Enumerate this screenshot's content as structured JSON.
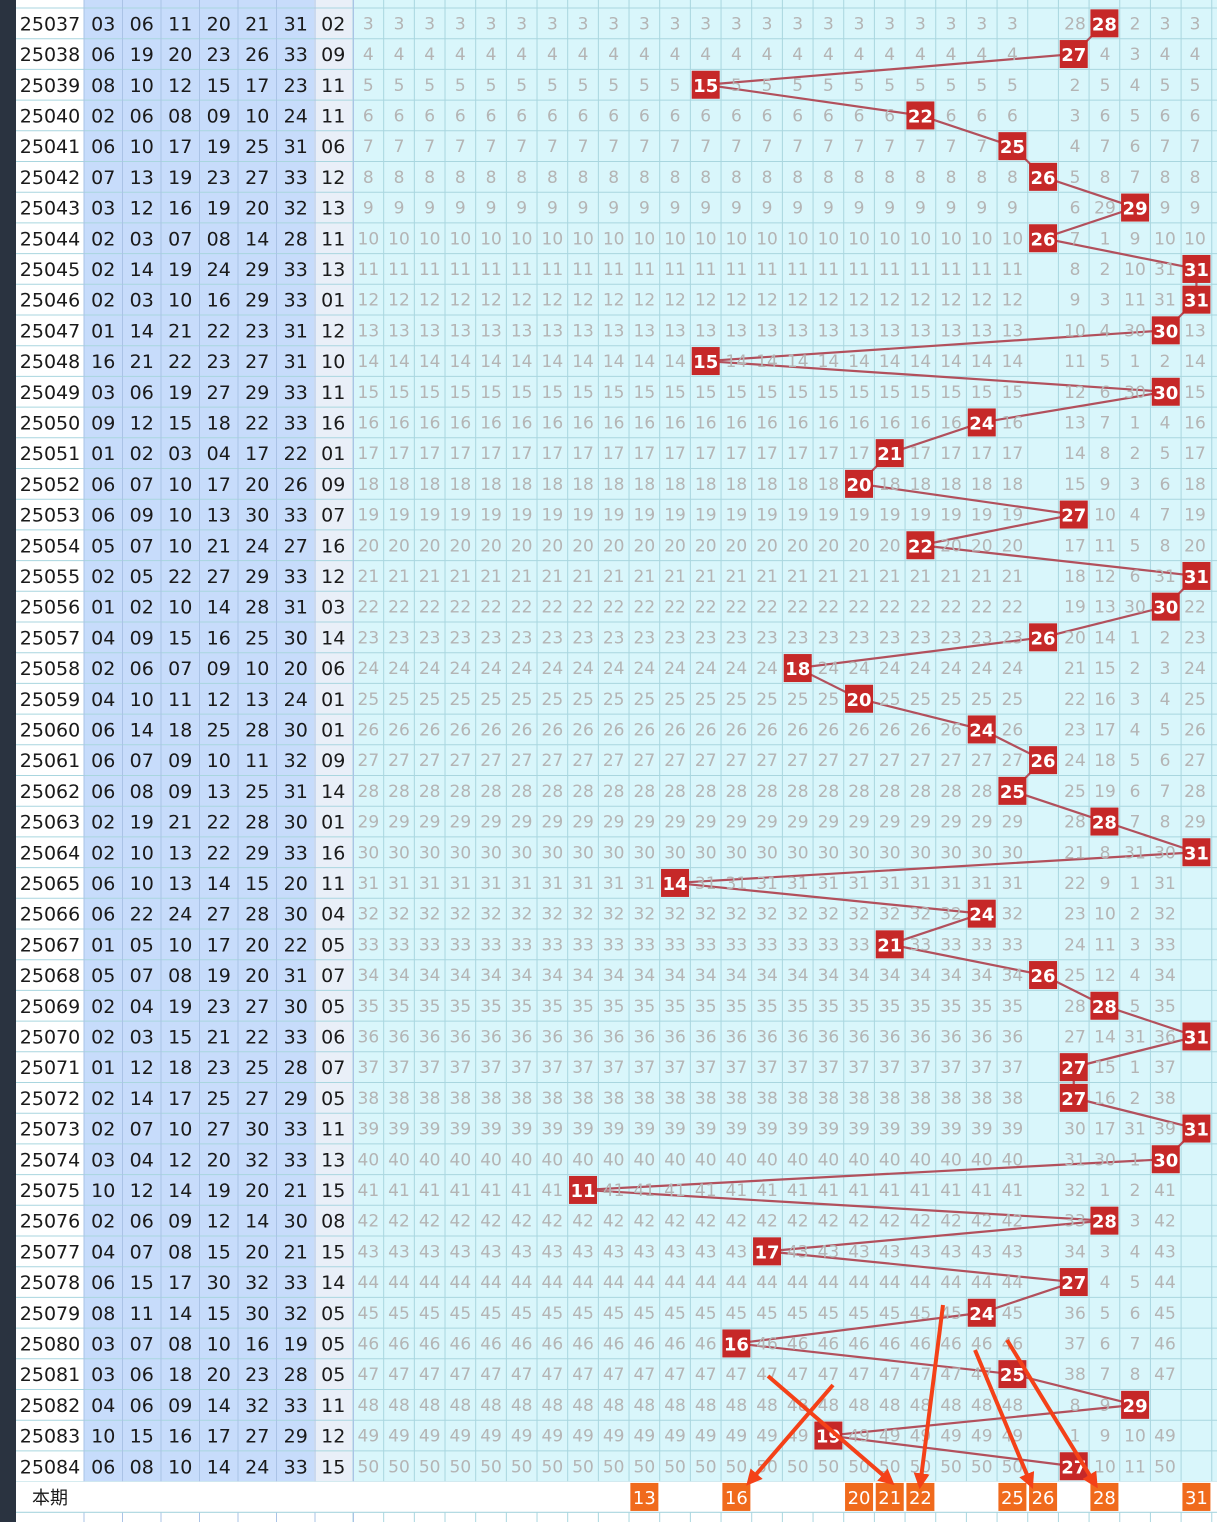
{
  "chart_data": {
    "type": "table",
    "column": "blue-ball-trend",
    "last_row_label": "本期",
    "predicted_numbers": [
      "13",
      "16",
      "20",
      "21",
      "22",
      "25",
      "26",
      "28",
      "31"
    ],
    "colors": {
      "hit_cell": "#c62828",
      "prediction_cell": "#f06a1c",
      "trend_line": "#b2505c",
      "arrow": "#f44118",
      "omission_text": "#b4b4b4",
      "grid_bg": "#d9f6fb",
      "ball_col_bg": "#c7dcfb"
    },
    "rows": [
      {
        "issue": "25037",
        "balls": [
          "03",
          "06",
          "11",
          "20",
          "21",
          "31"
        ],
        "blue": "02",
        "hit": 28,
        "tail": "1|28|3|2|3|3"
      },
      {
        "issue": "25038",
        "balls": [
          "06",
          "19",
          "20",
          "23",
          "26",
          "33"
        ],
        "blue": "09",
        "hit": 27,
        "tail": "27|1|4|3|4|4"
      },
      {
        "issue": "25039",
        "balls": [
          "08",
          "10",
          "12",
          "15",
          "17",
          "23"
        ],
        "blue": "11",
        "hit": 15,
        "tail": "2|5|4|5|5"
      },
      {
        "issue": "25040",
        "balls": [
          "02",
          "06",
          "08",
          "09",
          "10",
          "24"
        ],
        "blue": "11",
        "hit": 22,
        "tail": "2|3|6|5|6|6"
      },
      {
        "issue": "25041",
        "balls": [
          "06",
          "10",
          "17",
          "19",
          "25",
          "31"
        ],
        "blue": "06",
        "hit": 25,
        "tail": "3|4|7|6|7|7"
      },
      {
        "issue": "25042",
        "balls": [
          "07",
          "13",
          "19",
          "23",
          "27",
          "33"
        ],
        "blue": "12",
        "hit": 26,
        "tail": "4|5|8|7|8|8"
      },
      {
        "issue": "25043",
        "balls": [
          "03",
          "12",
          "16",
          "19",
          "20",
          "32"
        ],
        "blue": "13",
        "hit": 29,
        "tail": "5|6|29|8|9|9"
      },
      {
        "issue": "25044",
        "balls": [
          "02",
          "03",
          "07",
          "08",
          "14",
          "28"
        ],
        "blue": "11",
        "hit": 26,
        "tail": "6|7|1|9|10|10"
      },
      {
        "issue": "25045",
        "balls": [
          "02",
          "14",
          "19",
          "24",
          "29",
          "33"
        ],
        "blue": "13",
        "hit": 31,
        "tail": "7|8|2|10|31|11"
      },
      {
        "issue": "25046",
        "balls": [
          "02",
          "03",
          "10",
          "16",
          "29",
          "33"
        ],
        "blue": "01",
        "hit": 31,
        "tail": "8|9|3|11|31|12"
      },
      {
        "issue": "25047",
        "balls": [
          "01",
          "14",
          "21",
          "22",
          "23",
          "31"
        ],
        "blue": "12",
        "hit": 30,
        "tail": "9|10|4|30|1|13"
      },
      {
        "issue": "25048",
        "balls": [
          "16",
          "21",
          "22",
          "23",
          "27",
          "31"
        ],
        "blue": "10",
        "hit": 15,
        "tail": "10|11|5|1|2|14"
      },
      {
        "issue": "25049",
        "balls": [
          "03",
          "06",
          "19",
          "27",
          "29",
          "33"
        ],
        "blue": "11",
        "hit": 30,
        "tail": "11|12|6|30|3|15"
      },
      {
        "issue": "25050",
        "balls": [
          "09",
          "12",
          "15",
          "18",
          "22",
          "33"
        ],
        "blue": "16",
        "hit": 24,
        "tail": "12|13|7|1|4|16"
      },
      {
        "issue": "25051",
        "balls": [
          "01",
          "02",
          "03",
          "04",
          "17",
          "22"
        ],
        "blue": "01",
        "hit": 21,
        "tail": "13|14|8|2|5|17"
      },
      {
        "issue": "25052",
        "balls": [
          "06",
          "07",
          "10",
          "17",
          "20",
          "26"
        ],
        "blue": "09",
        "hit": 20,
        "tail": "14|15|9|3|6|18"
      },
      {
        "issue": "25053",
        "balls": [
          "06",
          "09",
          "10",
          "13",
          "30",
          "33"
        ],
        "blue": "07",
        "hit": 27,
        "tail": "16|10|4|7|19"
      },
      {
        "issue": "25054",
        "balls": [
          "05",
          "07",
          "10",
          "21",
          "24",
          "27"
        ],
        "blue": "16",
        "hit": 22,
        "tail": "17|11|5|8|20"
      },
      {
        "issue": "25055",
        "balls": [
          "02",
          "05",
          "22",
          "27",
          "29",
          "33"
        ],
        "blue": "12",
        "hit": 31,
        "tail": "18|12|6|31|21"
      },
      {
        "issue": "25056",
        "balls": [
          "01",
          "02",
          "10",
          "14",
          "28",
          "31"
        ],
        "blue": "03",
        "hit": 30,
        "tail": "19|13|30|1|22"
      },
      {
        "issue": "25057",
        "balls": [
          "04",
          "09",
          "15",
          "16",
          "25",
          "30"
        ],
        "blue": "14",
        "hit": 26,
        "tail": "20|14|1|2|23"
      },
      {
        "issue": "25058",
        "balls": [
          "02",
          "06",
          "07",
          "09",
          "10",
          "20"
        ],
        "blue": "06",
        "hit": 18,
        "tail": "21|15|2|3|24"
      },
      {
        "issue": "25059",
        "balls": [
          "04",
          "10",
          "11",
          "12",
          "13",
          "24"
        ],
        "blue": "01",
        "hit": 20,
        "tail": "22|16|3|4|25"
      },
      {
        "issue": "25060",
        "balls": [
          "06",
          "14",
          "18",
          "25",
          "28",
          "30"
        ],
        "blue": "01",
        "hit": 24,
        "tail": "23|17|4|5|26"
      },
      {
        "issue": "25061",
        "balls": [
          "06",
          "07",
          "09",
          "10",
          "11",
          "32"
        ],
        "blue": "09",
        "hit": 26,
        "tail": "24|18|5|6|27"
      },
      {
        "issue": "25062",
        "balls": [
          "06",
          "08",
          "09",
          "13",
          "25",
          "31"
        ],
        "blue": "14",
        "hit": 25,
        "tail": "25|19|6|7|28"
      },
      {
        "issue": "25063",
        "balls": [
          "02",
          "19",
          "21",
          "22",
          "28",
          "30"
        ],
        "blue": "01",
        "hit": 28,
        "tail": "28|20|7|8|29"
      },
      {
        "issue": "25064",
        "balls": [
          "02",
          "10",
          "13",
          "22",
          "29",
          "33"
        ],
        "blue": "16",
        "hit": 31,
        "tail": "21|8|31|30"
      },
      {
        "issue": "25065",
        "balls": [
          "06",
          "10",
          "13",
          "14",
          "15",
          "20"
        ],
        "blue": "11",
        "hit": 14,
        "tail": "22|9|1|31"
      },
      {
        "issue": "25066",
        "balls": [
          "06",
          "22",
          "24",
          "27",
          "28",
          "30"
        ],
        "blue": "04",
        "hit": 24,
        "tail": "23|10|2|32"
      },
      {
        "issue": "25067",
        "balls": [
          "01",
          "05",
          "10",
          "17",
          "20",
          "22"
        ],
        "blue": "05",
        "hit": 21,
        "tail": "24|11|3|33"
      },
      {
        "issue": "25068",
        "balls": [
          "05",
          "07",
          "08",
          "19",
          "20",
          "31"
        ],
        "blue": "07",
        "hit": 26,
        "tail": "25|12|4|34"
      },
      {
        "issue": "25069",
        "balls": [
          "02",
          "04",
          "19",
          "23",
          "27",
          "30"
        ],
        "blue": "05",
        "hit": 28,
        "tail": "28|13|5|35"
      },
      {
        "issue": "25070",
        "balls": [
          "02",
          "03",
          "15",
          "21",
          "22",
          "33"
        ],
        "blue": "06",
        "hit": 31,
        "tail": "27|14|31|36"
      },
      {
        "issue": "25071",
        "balls": [
          "01",
          "12",
          "18",
          "23",
          "25",
          "28"
        ],
        "blue": "07",
        "hit": 27,
        "tail": "28|15|1|37"
      },
      {
        "issue": "25072",
        "balls": [
          "02",
          "14",
          "17",
          "25",
          "27",
          "29"
        ],
        "blue": "05",
        "hit": 27,
        "tail": "29|16|2|38"
      },
      {
        "issue": "25073",
        "balls": [
          "02",
          "07",
          "10",
          "27",
          "30",
          "33"
        ],
        "blue": "11",
        "hit": 31,
        "tail": "30|17|31|39"
      },
      {
        "issue": "25074",
        "balls": [
          "03",
          "04",
          "12",
          "20",
          "32",
          "33"
        ],
        "blue": "13",
        "hit": 30,
        "tail": "31|30|1|40"
      },
      {
        "issue": "25075",
        "balls": [
          "10",
          "12",
          "14",
          "19",
          "20",
          "21"
        ],
        "blue": "15",
        "hit": 11,
        "tail": "32|1|2|41"
      },
      {
        "issue": "25076",
        "balls": [
          "02",
          "06",
          "09",
          "12",
          "14",
          "30"
        ],
        "blue": "08",
        "hit": 28,
        "tail": "33|2|3|42"
      },
      {
        "issue": "25077",
        "balls": [
          "04",
          "07",
          "08",
          "15",
          "20",
          "21"
        ],
        "blue": "15",
        "hit": 17,
        "tail": "34|3|4|43"
      },
      {
        "issue": "25078",
        "balls": [
          "06",
          "15",
          "17",
          "30",
          "32",
          "33"
        ],
        "blue": "14",
        "hit": 27,
        "tail": "35|4|5|44"
      },
      {
        "issue": "25079",
        "balls": [
          "08",
          "11",
          "14",
          "15",
          "30",
          "32"
        ],
        "blue": "05",
        "hit": 24,
        "tail": "36|5|6|45"
      },
      {
        "issue": "25080",
        "balls": [
          "03",
          "07",
          "08",
          "10",
          "16",
          "19"
        ],
        "blue": "05",
        "hit": 16,
        "tail": "37|6|7|46"
      },
      {
        "issue": "25081",
        "balls": [
          "03",
          "06",
          "18",
          "20",
          "23",
          "28"
        ],
        "blue": "05",
        "hit": 25,
        "tail": "38|7|8|47"
      },
      {
        "issue": "25082",
        "balls": [
          "04",
          "06",
          "09",
          "14",
          "32",
          "33"
        ],
        "blue": "11",
        "hit": 29,
        "tail": "8|9|48"
      },
      {
        "issue": "25083",
        "balls": [
          "10",
          "15",
          "16",
          "17",
          "27",
          "29"
        ],
        "blue": "12",
        "hit": 19,
        "tail": "1|9|10|49"
      },
      {
        "issue": "25084",
        "balls": [
          "06",
          "08",
          "10",
          "14",
          "24",
          "33"
        ],
        "blue": "15",
        "hit": 27,
        "tail": "2|10|11|50"
      }
    ]
  }
}
